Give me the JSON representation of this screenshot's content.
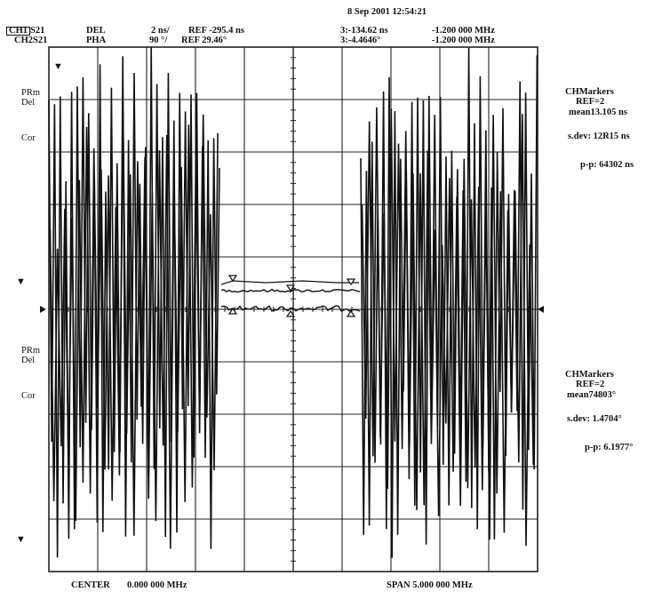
{
  "datetime": "8 Sep 2001   12:54:21",
  "header": {
    "ch1": {
      "id": "CH1",
      "param": "S21",
      "format": "DEL",
      "scale": "2 ns/",
      "ref": "REF -295.4 ns",
      "marker_label": "3:-134.62 ns",
      "marker_freq": "-1.200 000 MHz"
    },
    "ch2": {
      "id": "CH2",
      "param": "S21",
      "format": "PHA",
      "scale": "90 °/",
      "ref": "REF 29.46°",
      "marker_label": "3:-4.4646°",
      "marker_freq": "-1.200 000 MHz"
    }
  },
  "left_labels": {
    "top": {
      "prm": "PRm",
      "del": "Del",
      "cor": "Cor"
    },
    "bottom": {
      "prm": "PRm",
      "del": "Del",
      "cor": "Cor"
    }
  },
  "stats_ch1": {
    "title": "CHMarkers",
    "ref": "REF=2",
    "mean": "mean13.105 ns",
    "sdev": "s.dev: 12R15 ns",
    "pp": "p-p: 64302 ns"
  },
  "stats_ch2": {
    "title": "CHMarkers",
    "ref": "REF=2",
    "mean": "mean74803°",
    "sdev": "s.dev: 1.4704°",
    "pp": "p-p: 6.1977°"
  },
  "footer": {
    "center": "CENTER",
    "center_value": "0.000 000 MHz",
    "span": "SPAN 5.000 000 MHz"
  },
  "colors": {
    "trace": "#111111",
    "grid": "#222222",
    "background": "#ffffff"
  }
}
